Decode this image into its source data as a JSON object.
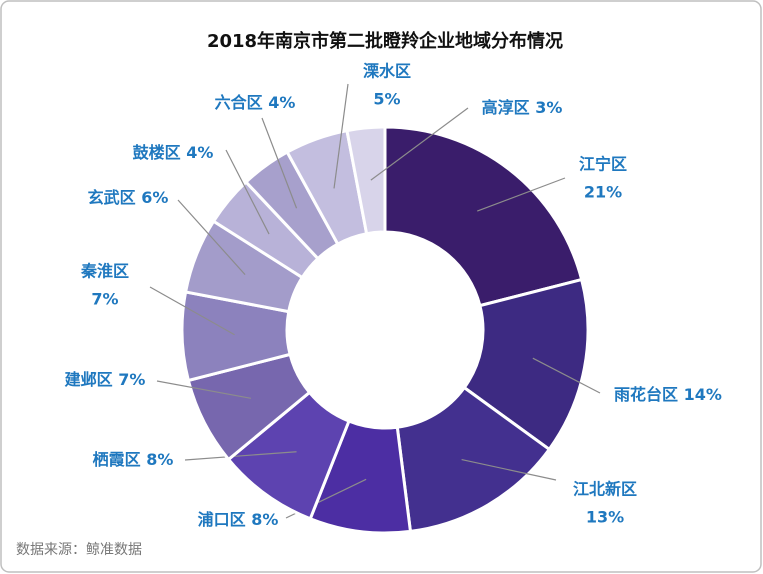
{
  "chart_data": {
    "type": "donut",
    "title": "2018年南京市第二批瞪羚企业地域分布情况",
    "categories": [
      "江宁区",
      "雨花台区",
      "江北新区",
      "浦口区",
      "栖霞区",
      "建邺区",
      "秦淮区",
      "玄武区",
      "鼓楼区",
      "六合区",
      "溧水区",
      "高淳区"
    ],
    "values": [
      21,
      14,
      13,
      8,
      8,
      7,
      7,
      6,
      4,
      4,
      5,
      3
    ],
    "value_labels": [
      "21%",
      "14%",
      "13%",
      "8%",
      "8%",
      "7%",
      "7%",
      "6%",
      "4%",
      "4%",
      "5%",
      "3%"
    ],
    "colors": [
      "#3a1d6b",
      "#3d2a82",
      "#43308f",
      "#4c2ea3",
      "#5d43b0",
      "#7767ae",
      "#8c82bd",
      "#a39cca",
      "#b8b2d8",
      "#a7a0cc",
      "#c3bedf",
      "#d8d4ea"
    ],
    "source": "数据来源：鲸准数据"
  }
}
